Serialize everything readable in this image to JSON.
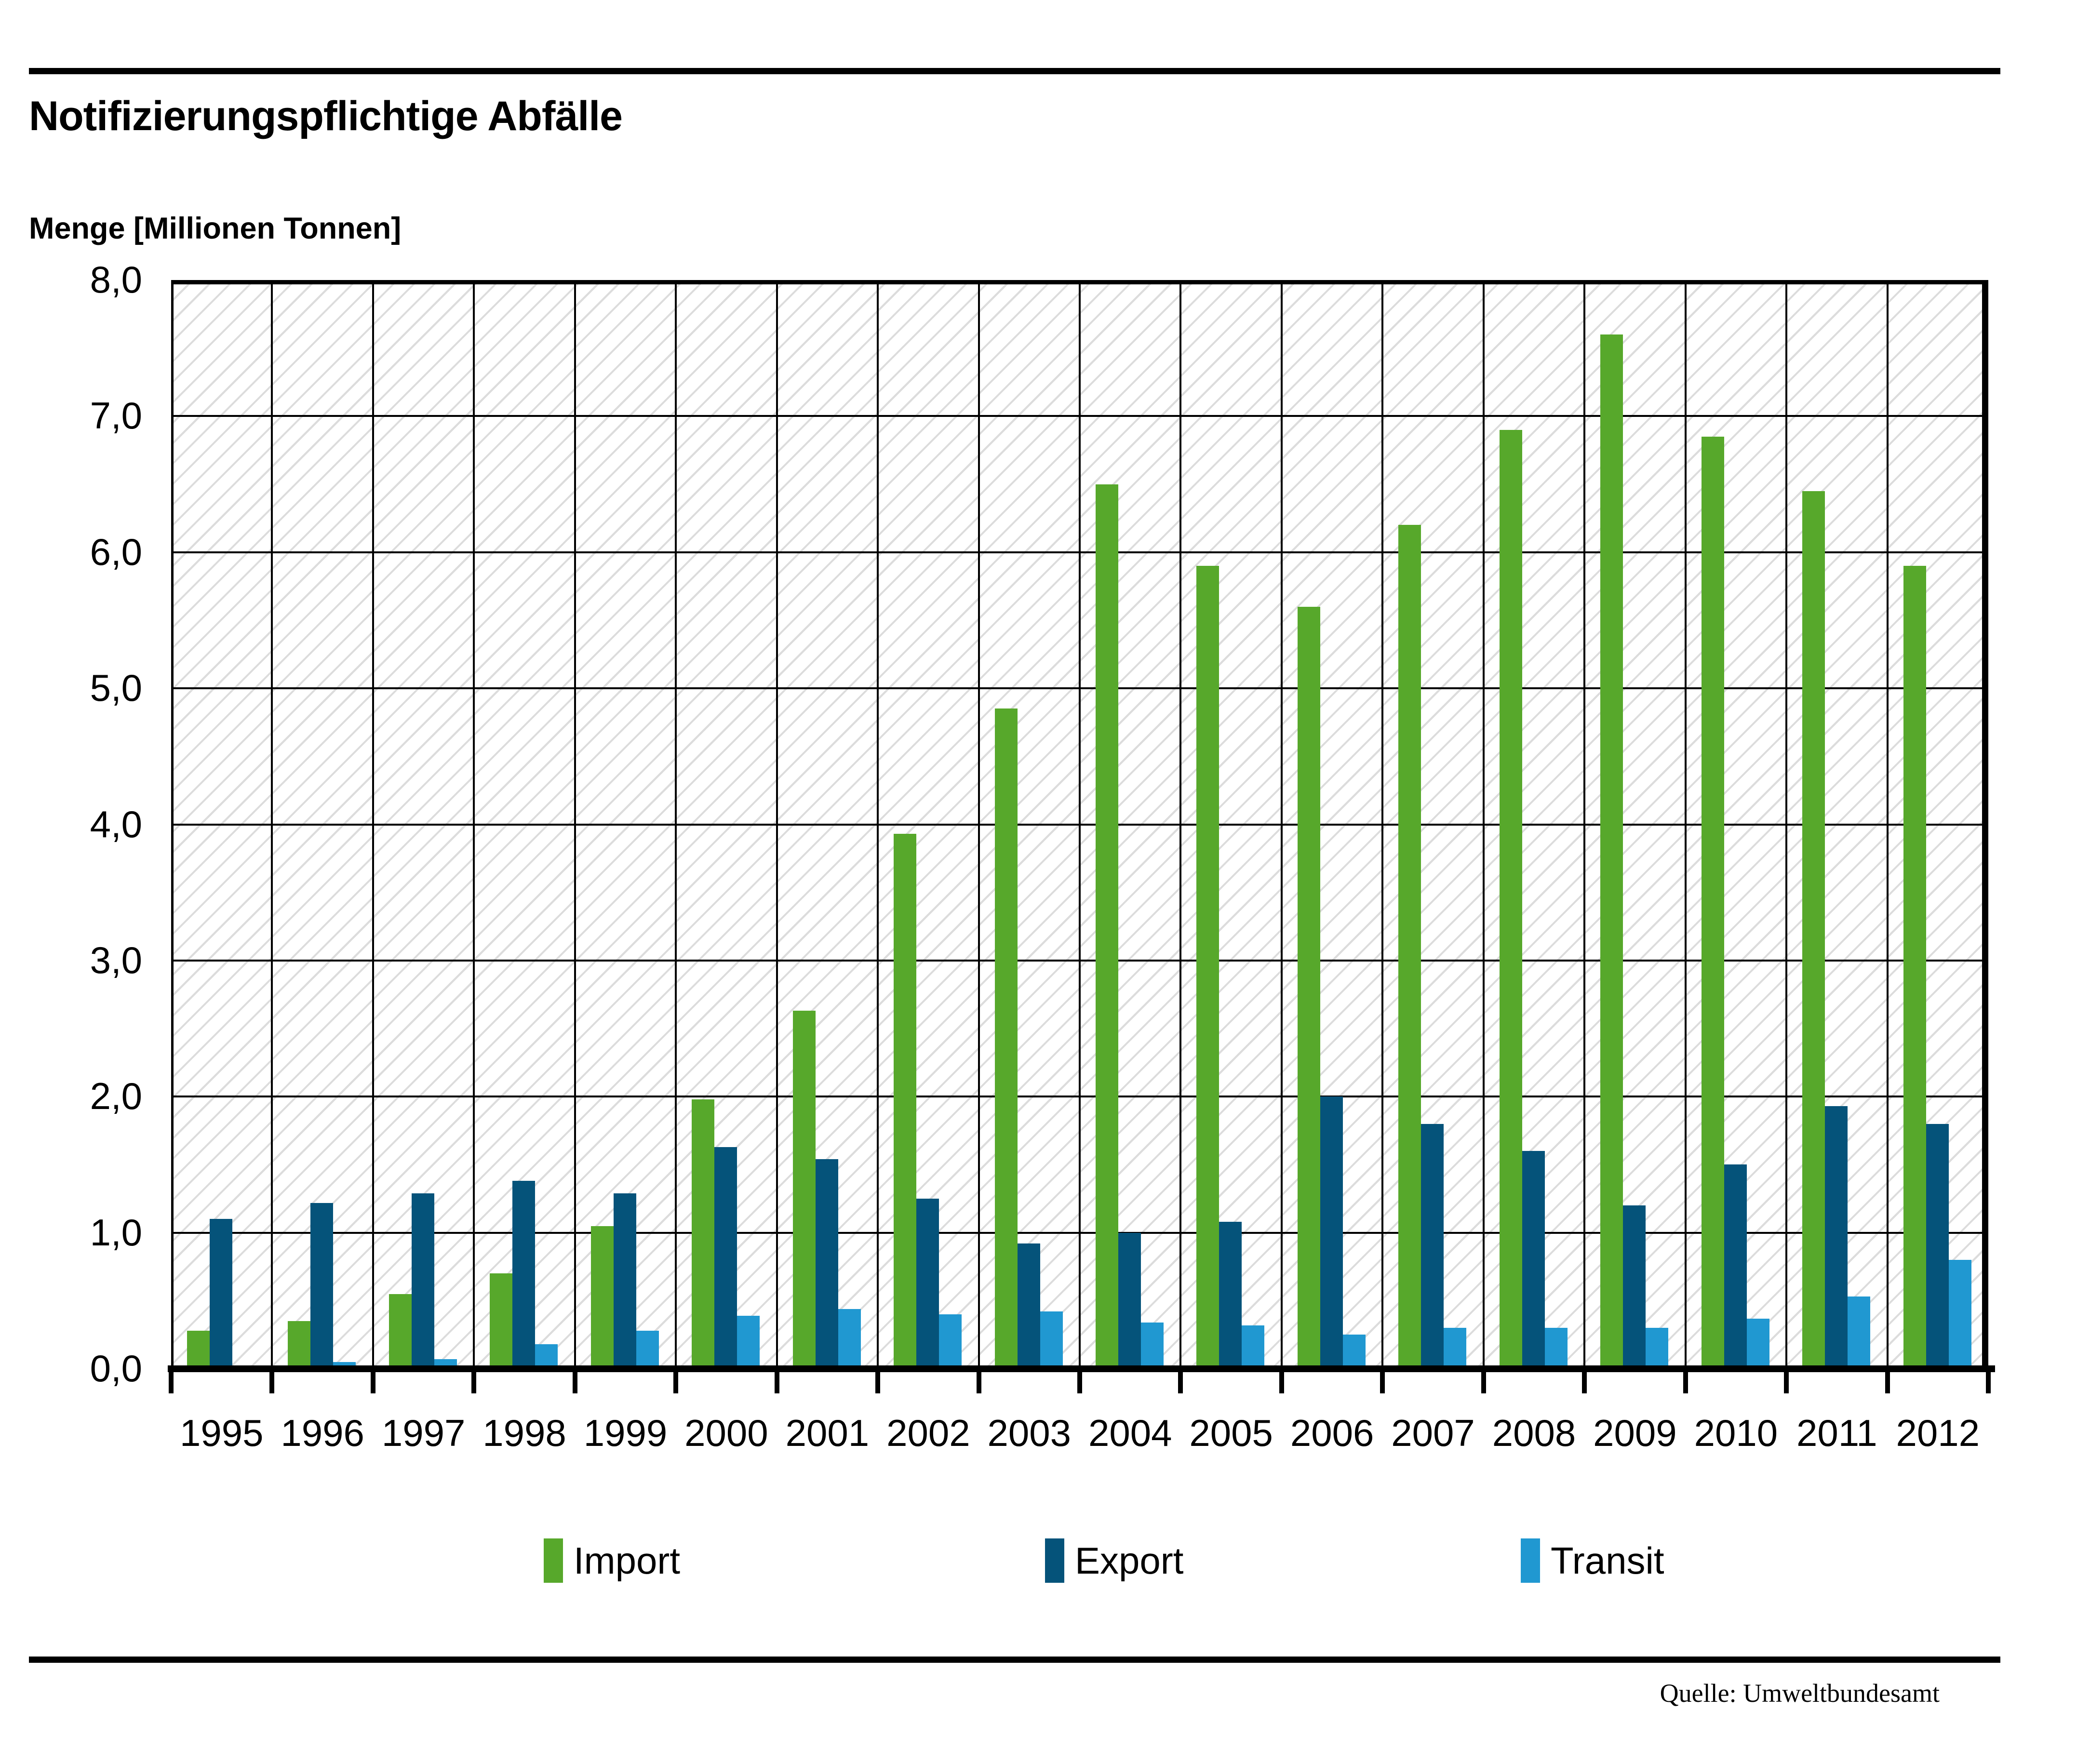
{
  "page": {
    "title": "Notifizierungspflichtige Abfälle",
    "subtitle": "Menge [Millionen Tonnen]",
    "source": "Quelle: Umweltbundesamt"
  },
  "colors": {
    "import": "#57A82B",
    "export": "#05537A",
    "transit": "#2098D1",
    "hatch_line": "#DCDCDC",
    "axis": "#000000"
  },
  "legend": {
    "items": [
      {
        "label": "Import"
      },
      {
        "label": "Export"
      },
      {
        "label": "Transit"
      }
    ]
  },
  "chart_data": {
    "type": "bar",
    "title": "Notifizierungspflichtige Abfälle",
    "xlabel": "",
    "ylabel": "Menge [Millionen Tonnen]",
    "ylim": [
      0,
      8
    ],
    "ytick_step": 1.0,
    "ytick_labels": [
      "0,0",
      "1,0",
      "2,0",
      "3,0",
      "4,0",
      "5,0",
      "6,0",
      "7,0",
      "8,0"
    ],
    "grid": true,
    "hatched_background": true,
    "legend_position": "bottom",
    "categories": [
      1995,
      1996,
      1997,
      1998,
      1999,
      2000,
      2001,
      2002,
      2003,
      2004,
      2005,
      2006,
      2007,
      2008,
      2009,
      2010,
      2011,
      2012
    ],
    "series": [
      {
        "name": "Import",
        "color": "#57A82B",
        "values": [
          0.28,
          0.35,
          0.55,
          0.7,
          1.05,
          1.98,
          2.63,
          3.93,
          4.85,
          6.5,
          5.9,
          5.6,
          6.2,
          6.9,
          7.6,
          6.85,
          6.45,
          5.9
        ]
      },
      {
        "name": "Export",
        "color": "#05537A",
        "values": [
          1.1,
          1.22,
          1.29,
          1.38,
          1.29,
          1.63,
          1.54,
          1.25,
          0.92,
          1.0,
          1.08,
          2.0,
          1.8,
          1.6,
          1.2,
          1.5,
          1.93,
          1.8
        ]
      },
      {
        "name": "Transit",
        "color": "#2098D1",
        "values": [
          0.0,
          0.05,
          0.07,
          0.18,
          0.28,
          0.39,
          0.44,
          0.4,
          0.42,
          0.34,
          0.32,
          0.25,
          0.3,
          0.3,
          0.3,
          0.37,
          0.53,
          0.8
        ]
      }
    ]
  }
}
